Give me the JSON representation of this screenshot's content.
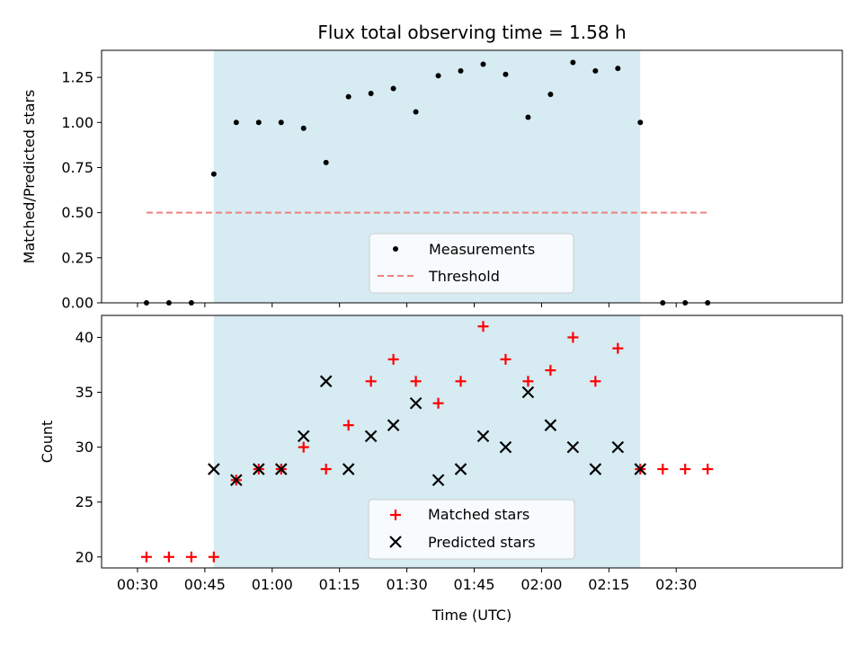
{
  "chart_data": [
    {
      "type": "scatter",
      "title": "Flux total observing time = 1.58 h",
      "xlabel": "",
      "ylabel": "Matched/Predicted stars",
      "ylim": [
        0,
        1.4
      ],
      "yticks": [
        "0.00",
        "0.25",
        "0.50",
        "0.75",
        "1.00",
        "1.25"
      ],
      "ytick_values": [
        0,
        0.25,
        0.5,
        0.75,
        1.0,
        1.25
      ],
      "x_range_min": [
        22,
        187
      ],
      "shaded_region_min": [
        47,
        142
      ],
      "shaded_color": "#add8e6",
      "series": [
        {
          "name": "Measurements",
          "marker": "dot",
          "color": "#000000",
          "x_min": [
            32,
            37,
            42,
            47,
            52,
            57,
            62,
            67,
            72,
            77,
            82,
            87,
            92,
            97,
            102,
            107,
            112,
            117,
            122,
            127,
            132,
            137,
            142,
            147,
            152,
            157
          ],
          "values": [
            0,
            0,
            0,
            0.714,
            1.0,
            1.0,
            1.0,
            0.968,
            0.778,
            1.143,
            1.161,
            1.188,
            1.059,
            1.259,
            1.286,
            1.323,
            1.267,
            1.029,
            1.156,
            1.333,
            1.286,
            1.3,
            1.0,
            0,
            0,
            0
          ]
        },
        {
          "name": "Threshold",
          "marker": "dashed-line",
          "color": "#f08080",
          "x_min": [
            32,
            157
          ],
          "values": [
            0.5,
            0.5
          ]
        }
      ],
      "legend": "lower-center"
    },
    {
      "type": "scatter",
      "xlabel": "Time (UTC)",
      "ylabel": "Count",
      "ylim": [
        19,
        42
      ],
      "yticks": [
        "20",
        "25",
        "30",
        "35",
        "40"
      ],
      "ytick_values": [
        20,
        25,
        30,
        35,
        40
      ],
      "xticks": [
        "00:30",
        "00:45",
        "01:00",
        "01:15",
        "01:30",
        "01:45",
        "02:00",
        "02:15",
        "02:30"
      ],
      "xtick_values_min": [
        30,
        45,
        60,
        75,
        90,
        105,
        120,
        135,
        150
      ],
      "x_range_min": [
        22,
        187
      ],
      "shaded_region_min": [
        47,
        142
      ],
      "shaded_color": "#add8e6",
      "series": [
        {
          "name": "Matched stars",
          "marker": "plus",
          "color": "#ff0000",
          "x_min": [
            32,
            37,
            42,
            47,
            52,
            57,
            62,
            67,
            72,
            77,
            82,
            87,
            92,
            97,
            102,
            107,
            112,
            117,
            122,
            127,
            132,
            137,
            142,
            147,
            152,
            157
          ],
          "values": [
            20,
            20,
            20,
            20,
            27,
            28,
            28,
            30,
            28,
            32,
            36,
            38,
            36,
            34,
            36,
            41,
            38,
            36,
            37,
            40,
            36,
            39,
            28,
            28,
            28,
            28
          ]
        },
        {
          "name": "Predicted stars",
          "marker": "x",
          "color": "#000000",
          "x_min": [
            47,
            52,
            57,
            62,
            67,
            72,
            77,
            82,
            87,
            92,
            97,
            102,
            107,
            112,
            117,
            122,
            127,
            132,
            137,
            142
          ],
          "values": [
            28,
            27,
            28,
            28,
            31,
            36,
            28,
            31,
            32,
            34,
            27,
            28,
            31,
            30,
            35,
            32,
            30,
            28,
            30,
            28
          ]
        }
      ],
      "legend": "lower-center"
    }
  ]
}
